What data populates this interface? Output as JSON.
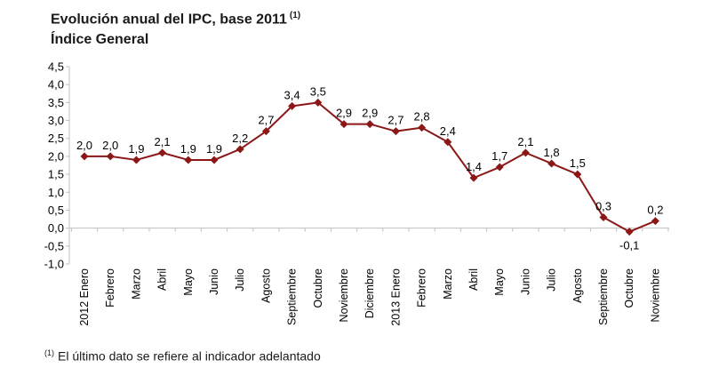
{
  "title": {
    "line1": "Evolución anual del IPC, base 2011",
    "superscript": "(1)",
    "line2": "Índice General"
  },
  "footnote": {
    "superscript": "(1)",
    "text": "El último dato se refiere al indicador adelantado"
  },
  "colors": {
    "line": "#8B1717",
    "marker": "#8B1717",
    "axis": "#C0C0C0",
    "text": "#000000"
  },
  "chart_data": {
    "type": "line",
    "title": "Evolución anual del IPC, base 2011 (1)",
    "subtitle": "Índice General",
    "xlabel": "",
    "ylabel": "",
    "legend": "none",
    "grid": false,
    "marker": "diamond",
    "line_color": "#8B1717",
    "ylim": [
      -1.0,
      4.5
    ],
    "ytick_step": 0.5,
    "ytick_labels": [
      "4,5",
      "4,0",
      "3,5",
      "3,0",
      "2,5",
      "2,0",
      "1,5",
      "1,0",
      "0,5",
      "0,0",
      "-0,5",
      "-1,0"
    ],
    "categories": [
      "2012 Enero",
      "Febrero",
      "Marzo",
      "Abril",
      "Mayo",
      "Junio",
      "Julio",
      "Agosto",
      "Septiembre",
      "Octubre",
      "Noviembre",
      "Diciembre",
      "2013 Enero",
      "Febrero",
      "Marzo",
      "Abril",
      "Mayo",
      "Junio",
      "Julio",
      "Agosto",
      "Septiembre",
      "Octubre",
      "Noviembre"
    ],
    "values": [
      2.0,
      2.0,
      1.9,
      2.1,
      1.9,
      1.9,
      2.2,
      2.7,
      3.4,
      3.5,
      2.9,
      2.9,
      2.7,
      2.8,
      2.4,
      1.4,
      1.7,
      2.1,
      1.8,
      1.5,
      0.3,
      -0.1,
      0.2
    ],
    "value_labels": [
      "2,0",
      "2,0",
      "1,9",
      "2,1",
      "1,9",
      "1,9",
      "2,2",
      "2,7",
      "3,4",
      "3,5",
      "2,9",
      "2,9",
      "2,7",
      "2,8",
      "2,4",
      "1,4",
      "1,7",
      "2,1",
      "1,8",
      "1,5",
      "0,3",
      "-0,1",
      "0,2"
    ]
  }
}
